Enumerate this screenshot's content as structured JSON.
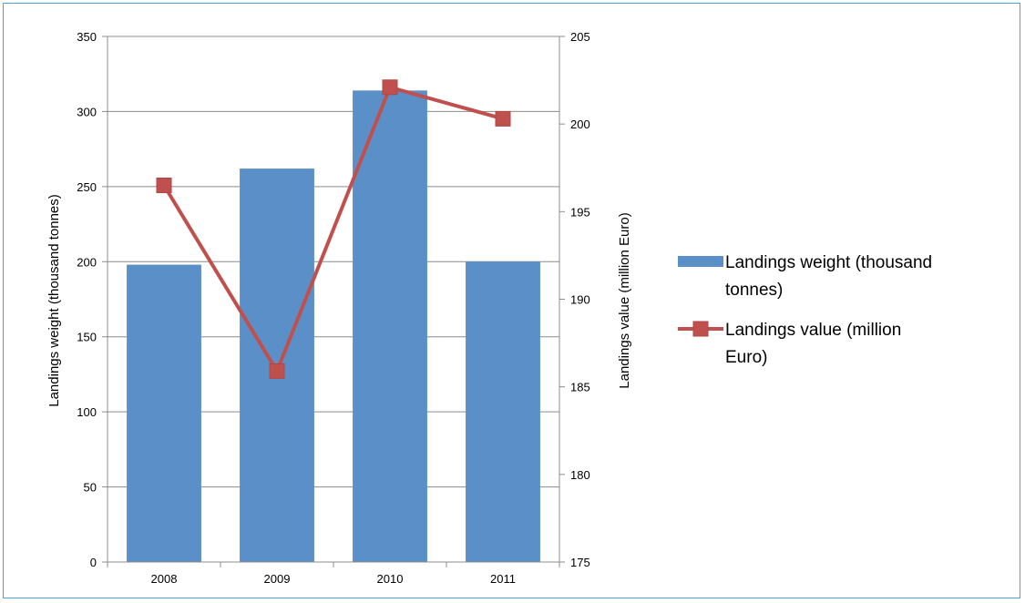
{
  "chart_data": {
    "type": "bar",
    "categories": [
      "2008",
      "2009",
      "2010",
      "2011"
    ],
    "series": [
      {
        "name": "Landings weight (thousand tonnes)",
        "type": "bar",
        "axis": "left",
        "color": "#5b8fc7",
        "values": [
          198,
          262,
          314,
          200
        ]
      },
      {
        "name": "Landings value (million Euro)",
        "type": "line",
        "axis": "right",
        "color": "#c0504d",
        "values": [
          196.5,
          185.9,
          202.1,
          200.3
        ]
      }
    ],
    "y_left": {
      "label": "Landings weight (thousand tonnes)",
      "range": [
        0,
        350
      ],
      "ticks": [
        "0",
        "50",
        "100",
        "150",
        "200",
        "250",
        "300",
        "350"
      ]
    },
    "y_right": {
      "label": "Landings value (million Euro)",
      "range": [
        175,
        205
      ],
      "ticks": [
        "175",
        "180",
        "185",
        "190",
        "195",
        "200",
        "205"
      ]
    },
    "legend": {
      "position": "right",
      "items": [
        {
          "lines": [
            "Landings weight (thousand",
            "tonnes)"
          ]
        },
        {
          "lines": [
            "Landings value (million",
            "Euro)"
          ]
        }
      ]
    },
    "grid": true
  }
}
